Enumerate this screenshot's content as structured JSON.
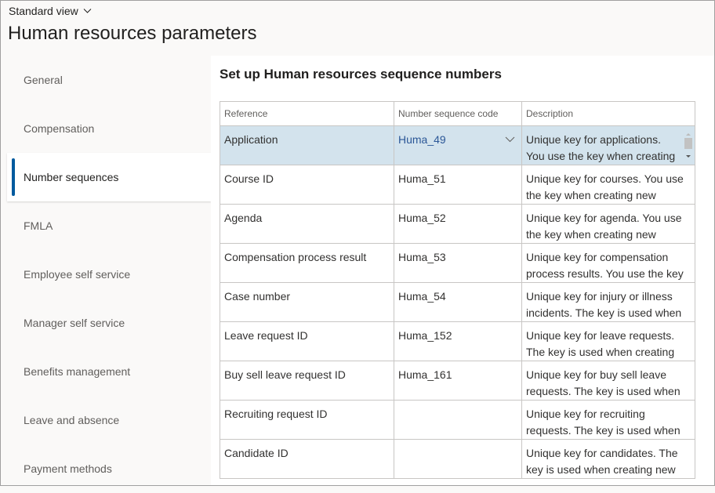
{
  "header": {
    "view": "Standard view",
    "title": "Human resources parameters"
  },
  "nav": {
    "items": [
      {
        "label": "General"
      },
      {
        "label": "Compensation"
      },
      {
        "label": "Number sequences",
        "selected": true
      },
      {
        "label": "FMLA"
      },
      {
        "label": "Employee self service"
      },
      {
        "label": "Manager self service"
      },
      {
        "label": "Benefits management"
      },
      {
        "label": "Leave and absence"
      },
      {
        "label": "Payment methods"
      }
    ]
  },
  "main": {
    "heading": "Set up Human resources sequence numbers",
    "columns": [
      "Reference",
      "Number sequence code",
      "Description"
    ],
    "rows": [
      {
        "reference": "Application",
        "code": "Huma_49",
        "description": "Unique key for applications. You use the key when creating"
      },
      {
        "reference": "Course ID",
        "code": "Huma_51",
        "description": "Unique key for courses. You use the key when creating new"
      },
      {
        "reference": "Agenda",
        "code": "Huma_52",
        "description": "Unique key for agenda. You use the key when creating new"
      },
      {
        "reference": "Compensation process result",
        "code": "Huma_53",
        "description": "Unique key for compensation process results. You use the key"
      },
      {
        "reference": "Case number",
        "code": "Huma_54",
        "description": "Unique key for injury or illness incidents. The key is used when"
      },
      {
        "reference": "Leave request ID",
        "code": "Huma_152",
        "description": "Unique key for leave requests. The key is used when creating"
      },
      {
        "reference": "Buy sell leave request ID",
        "code": "Huma_161",
        "description": "Unique key for buy sell leave requests. The key is used when"
      },
      {
        "reference": "Recruiting request ID",
        "code": "",
        "description": "Unique key for recruiting requests. The key is used when"
      },
      {
        "reference": "Candidate ID",
        "code": "",
        "description": "Unique key for candidates. The key is used when creating new"
      }
    ]
  },
  "colors": {
    "accent": "#005a9e",
    "selected_row": "#d3e3ed",
    "link": "#2b5797"
  }
}
